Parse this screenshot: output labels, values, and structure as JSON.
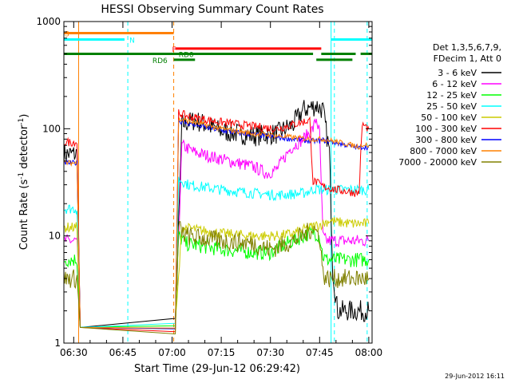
{
  "chart_data": {
    "type": "line",
    "title": "HESSI Observing Summary Count Rates",
    "xlabel": "Start Time (29-Jun-12 06:29:42)",
    "ylabel_main": "Count Rate (s",
    "ylabel_sup": "-1",
    "ylabel_mid": " detector",
    "ylabel_sup2": "-1",
    "ylabel_end": ")",
    "footer": "29-Jun-2012 16:11",
    "xlim_minutes": [
      -3,
      91
    ],
    "x_ticks": [
      {
        "m": 0,
        "label": "06:30"
      },
      {
        "m": 15,
        "label": "06:45"
      },
      {
        "m": 30,
        "label": "07:00"
      },
      {
        "m": 45,
        "label": "07:15"
      },
      {
        "m": 60,
        "label": "07:30"
      },
      {
        "m": 75,
        "label": "07:45"
      },
      {
        "m": 90,
        "label": "08:00"
      }
    ],
    "y_log": true,
    "ylim": [
      1,
      1000
    ],
    "y_ticks": [
      {
        "v": 1,
        "label": "1"
      },
      {
        "v": 10,
        "label": "10"
      },
      {
        "v": 100,
        "label": "100"
      },
      {
        "v": 1000,
        "label": "1000"
      }
    ],
    "legend_header": [
      "Det 1,3,5,6,7,9,",
      "FDecim 1, Att 0"
    ],
    "legend_position": "right",
    "series": [
      {
        "name": "3 - 6 keV",
        "color": "#000000",
        "x": [
          -3,
          1,
          2,
          31,
          33,
          37,
          45,
          55,
          62,
          67,
          70,
          74,
          76,
          78,
          79,
          80,
          80.5,
          90
        ],
        "y": [
          58,
          58,
          1.4,
          1.4,
          110,
          120,
          95,
          86,
          90,
          110,
          150,
          165,
          150,
          60,
          5,
          2.5,
          2,
          2
        ]
      },
      {
        "name": "6 - 12 keV",
        "color": "#ff00ff",
        "x": [
          -3,
          1,
          2,
          31,
          33,
          37,
          45,
          55,
          59,
          62,
          66,
          70,
          73,
          74,
          75,
          76,
          77,
          90
        ],
        "y": [
          9,
          9,
          1.4,
          1.4,
          70,
          60,
          52,
          44,
          38,
          42,
          65,
          80,
          100,
          125,
          90,
          10,
          9,
          9
        ]
      },
      {
        "name": "12 - 25 keV",
        "color": "#00ff00",
        "x": [
          -3,
          1,
          2,
          31,
          32,
          34,
          45,
          55,
          60,
          65,
          70,
          73,
          75,
          76,
          77,
          90
        ],
        "y": [
          6,
          6,
          1.4,
          1.4,
          10,
          8.5,
          7.5,
          7,
          7,
          8.5,
          10,
          11,
          10,
          6.5,
          6,
          6
        ]
      },
      {
        "name": "25 - 50 keV",
        "color": "#00ffff",
        "x": [
          -3,
          1,
          2,
          31,
          32,
          35,
          45,
          55,
          62,
          70,
          73,
          74,
          75,
          76,
          77,
          90
        ],
        "y": [
          18,
          18,
          1.4,
          1.4,
          34,
          30,
          27,
          25,
          24,
          25,
          27,
          28,
          27,
          27,
          27,
          27
        ]
      },
      {
        "name": "50 - 100 keV",
        "color": "#cccc00",
        "x": [
          -3,
          1,
          2,
          31,
          33,
          45,
          55,
          62,
          67,
          72,
          76,
          78,
          80,
          85,
          86,
          90
        ],
        "y": [
          12,
          12,
          1.4,
          1.4,
          12,
          10.5,
          10,
          10,
          10.5,
          12,
          13,
          14,
          13.5,
          13,
          13,
          13
        ]
      },
      {
        "name": "100 - 300 keV",
        "color": "#ff0000",
        "x": [
          -3,
          1,
          2,
          31,
          32,
          35,
          45,
          55,
          62,
          72,
          73,
          74,
          75,
          76,
          80,
          87,
          88,
          90
        ],
        "y": [
          75,
          75,
          1.4,
          1.4,
          140,
          130,
          115,
          105,
          100,
          120,
          32,
          32,
          30,
          29,
          27,
          25,
          110,
          100
        ]
      },
      {
        "name": "300 - 800 keV",
        "color": "#0000ff",
        "x": [
          -3,
          1,
          2,
          31,
          32,
          35,
          45,
          55,
          62,
          72,
          75,
          76,
          80,
          87,
          88,
          90
        ],
        "y": [
          48,
          48,
          1.4,
          1.4,
          118,
          112,
          96,
          88,
          83,
          77,
          77,
          78,
          74,
          66,
          68,
          67
        ]
      },
      {
        "name": "800 - 7000 keV",
        "color": "#ff8000",
        "x": [
          -3,
          1,
          2,
          31,
          32,
          35,
          45,
          55,
          62,
          72,
          75,
          76,
          80,
          87,
          88,
          90
        ],
        "y": [
          48,
          48,
          1.4,
          1.4,
          122,
          118,
          100,
          90,
          86,
          80,
          80,
          80,
          76,
          68,
          71,
          70
        ]
      },
      {
        "name": "7000 - 20000 keV",
        "color": "#808000",
        "x": [
          -3,
          1,
          2,
          31,
          32,
          34,
          45,
          55,
          60,
          65,
          70,
          73,
          75,
          76,
          77,
          90
        ],
        "y": [
          4,
          4,
          1.4,
          1.4,
          12,
          10,
          9,
          8.5,
          7.5,
          8.5,
          10,
          12,
          10,
          4.5,
          4,
          4
        ]
      }
    ],
    "flags": [
      {
        "label": "S",
        "color": "#ff8000",
        "segments": [
          [
            -3,
            30.5
          ]
        ],
        "level": 780,
        "label_x": -2.8
      },
      {
        "label": "N",
        "color": "#00ffff",
        "segments": [
          [
            -3,
            15.5
          ],
          [
            78.5,
            91
          ]
        ],
        "level": 680,
        "label_x": 17
      },
      {
        "label": "F",
        "color": "#ff0000",
        "segments": [
          [
            31,
            75.5
          ]
        ],
        "level": 560,
        "label_x": 30
      },
      {
        "label": "RD0",
        "color": "#008000",
        "segments": [
          [
            -3,
            73
          ],
          [
            75.5,
            86
          ],
          [
            87.5,
            91
          ]
        ],
        "level": 500,
        "label_x": 32
      },
      {
        "label": "RD6",
        "color": "#008000",
        "segments": [
          [
            30.5,
            37
          ],
          [
            74,
            85
          ]
        ],
        "level": 440,
        "label_x": 24
      }
    ],
    "vlines": [
      {
        "m": -3,
        "color": "#00ffff",
        "style": "solid"
      },
      {
        "m": 1.5,
        "color": "#ff8000",
        "style": "solid"
      },
      {
        "m": 16.5,
        "color": "#00ffff",
        "style": "dashed"
      },
      {
        "m": 30.5,
        "color": "#ff8000",
        "style": "dashed"
      },
      {
        "m": 78.5,
        "color": "#00ffff",
        "style": "solid"
      },
      {
        "m": 79.5,
        "color": "#00ffff",
        "style": "dashed"
      },
      {
        "m": 89.5,
        "color": "#00ffff",
        "style": "dashed"
      }
    ]
  }
}
